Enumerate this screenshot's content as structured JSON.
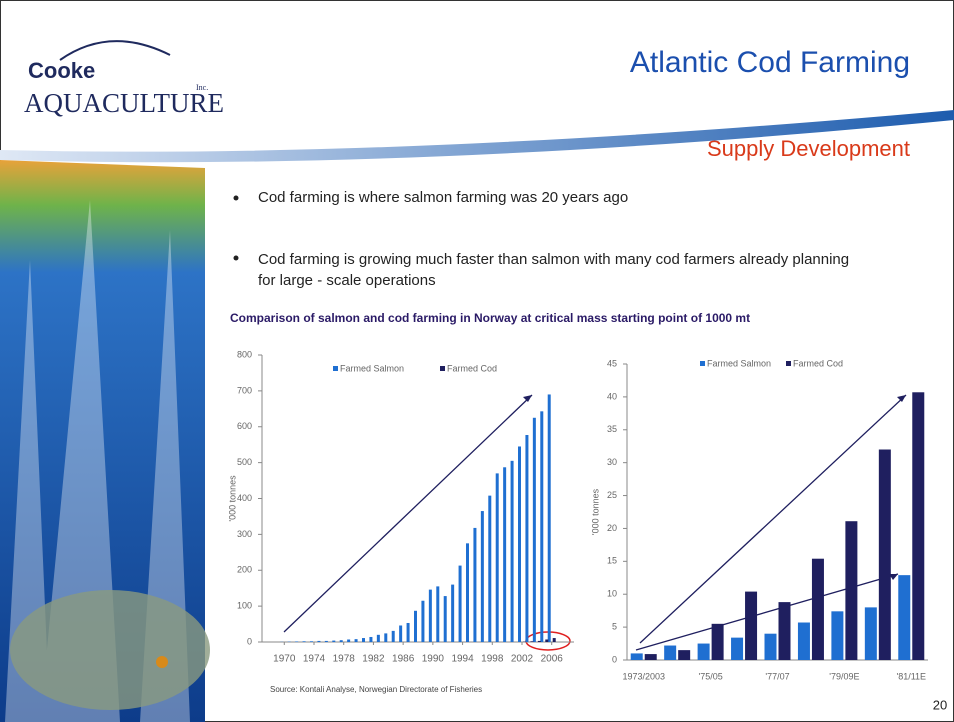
{
  "slide": {
    "logo": {
      "brand": "Cooke",
      "name": "AQUACULTURE",
      "suffix": "Inc."
    },
    "title": "Atlantic Cod Farming",
    "subtitle": "Supply Development",
    "bullets": [
      "Cod farming is where salmon farming was 20 years ago",
      "Cod farming is growing much faster than salmon with many cod farmers already planning for large - scale operations"
    ],
    "caption": "Comparison of salmon and cod farming in Norway at critical mass starting point of 1000 mt",
    "source": "Source: Kontali Analyse, Norwegian Directorate of Fisheries",
    "page_number": "20"
  },
  "chart_data": [
    {
      "type": "bar",
      "y_label": "'000 tonnes",
      "x": [
        1970,
        1971,
        1972,
        1973,
        1974,
        1975,
        1976,
        1977,
        1978,
        1979,
        1980,
        1981,
        1982,
        1983,
        1984,
        1985,
        1986,
        1987,
        1988,
        1989,
        1990,
        1991,
        1992,
        1993,
        1994,
        1995,
        1996,
        1997,
        1998,
        1999,
        2000,
        2001,
        2002,
        2003,
        2004,
        2005,
        2006
      ],
      "xlim": [
        1967,
        2009
      ],
      "xticks": [
        1970,
        1974,
        1978,
        1982,
        1986,
        1990,
        1994,
        1998,
        2002,
        2006
      ],
      "ylim": [
        0,
        800
      ],
      "yticks": [
        0,
        100,
        200,
        300,
        400,
        500,
        600,
        700,
        800
      ],
      "series": [
        {
          "name": "Farmed Salmon",
          "color": "#1f6fd1",
          "values": [
            0.5,
            1,
            1.5,
            2,
            2,
            3,
            3,
            4,
            5,
            7,
            8,
            11,
            14,
            20,
            24,
            31,
            46,
            53,
            87,
            115,
            146,
            155,
            128,
            160,
            213,
            275,
            318,
            365,
            408,
            470,
            487,
            505,
            545,
            577,
            625,
            643,
            690
          ]
        },
        {
          "name": "Farmed Cod",
          "color": "#1f1f5f",
          "values": [
            0,
            0,
            0,
            0,
            0,
            0,
            0,
            0,
            0,
            0,
            0,
            0,
            0,
            0,
            0,
            0,
            0,
            0,
            0,
            0,
            0,
            0,
            0,
            0,
            0,
            0,
            0,
            0,
            0,
            0,
            0,
            0,
            1,
            2,
            3,
            7,
            11
          ]
        }
      ]
    },
    {
      "type": "bar",
      "y_label": "'000 tonnes",
      "categories": [
        "1973/2003",
        null,
        "'75/05",
        null,
        "'77/07",
        null,
        "'79/09E",
        null,
        "'81/11E"
      ],
      "ylim": [
        0,
        45
      ],
      "yticks": [
        0,
        5,
        10,
        15,
        20,
        25,
        30,
        35,
        40,
        45
      ],
      "series": [
        {
          "name": "Farmed Salmon",
          "color": "#1f6fd1",
          "values": [
            1.0,
            2.2,
            2.5,
            3.4,
            4.0,
            5.7,
            7.4,
            8.0,
            12.9
          ]
        },
        {
          "name": "Farmed Cod",
          "color": "#1f1f5f",
          "values": [
            0.9,
            1.5,
            5.5,
            10.4,
            8.8,
            15.4,
            21.1,
            32.0,
            40.7
          ]
        }
      ]
    }
  ]
}
